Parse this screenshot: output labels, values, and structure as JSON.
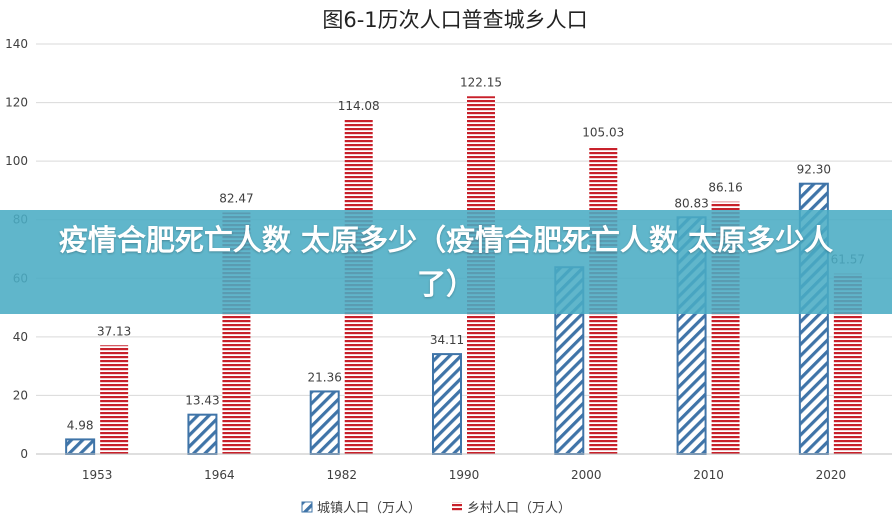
{
  "colors": {
    "urban": "#3f74a8",
    "rural": "#c8202a",
    "banner": "#4aacc4",
    "grid": "#d9d9d9",
    "text": "#404040"
  },
  "banner": {
    "text": "疫情合肥死亡人数 太原多少（疫情合肥死亡人数 太原多少人了）"
  },
  "chart_data": {
    "type": "bar",
    "title": "图6-1历次人口普查城乡人口",
    "categories": [
      "1953",
      "1964",
      "1982",
      "1990",
      "2000",
      "2010",
      "2020"
    ],
    "series": [
      {
        "name": "城镇人口（万人）",
        "values": [
          4.98,
          13.43,
          21.36,
          34.11,
          63.78,
          80.83,
          92.3
        ],
        "labels": [
          "4.98",
          "13.43",
          "21.36",
          "34.11",
          "",
          "80.83",
          "92.30"
        ],
        "pattern": "diagonal-hatch"
      },
      {
        "name": "乡村人口（万人）",
        "values": [
          37.13,
          82.47,
          114.08,
          122.15,
          105.03,
          86.16,
          61.57
        ],
        "labels": [
          "37.13",
          "82.47",
          "114.08",
          "122.15",
          "105.03",
          "86.16",
          "61.57"
        ],
        "pattern": "horizontal-stripes"
      }
    ],
    "ylim": [
      0,
      140
    ],
    "yticks": [
      0,
      20,
      40,
      60,
      80,
      100,
      120,
      140
    ],
    "grid": true,
    "legend": "bottom"
  }
}
